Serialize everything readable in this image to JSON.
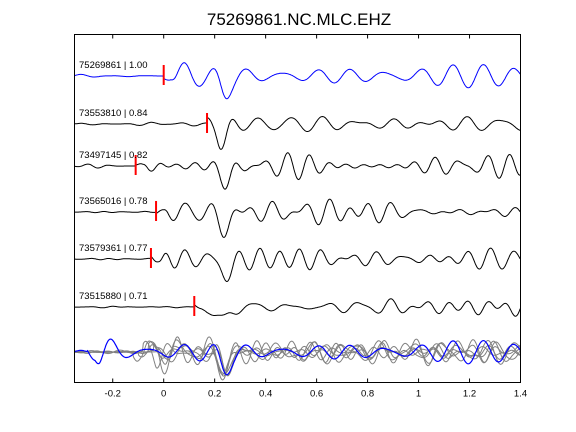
{
  "chart_data": {
    "type": "line",
    "title": "75269861.NC.MLC.EHZ",
    "xlabel": "",
    "ylabel": "",
    "xlim": [
      -0.35,
      1.4
    ],
    "xticks": [
      -0.2,
      0,
      0.2,
      0.4,
      0.6,
      0.8,
      1,
      1.2,
      1.4
    ],
    "xtick_labels": [
      "-0.2",
      "0",
      "0.2",
      "0.4",
      "0.6",
      "0.8",
      "1",
      "1.2",
      "1.4"
    ],
    "colors": {
      "reference": "#0000ff",
      "trace": "#000000",
      "pick": "#ff0000",
      "overlay": "#808080"
    },
    "traces": [
      {
        "label": "75269861 | 1.00",
        "pick_time": 0.0,
        "color": "reference"
      },
      {
        "label": "73553810 | 0.84",
        "pick_time": 0.17,
        "color": "trace"
      },
      {
        "label": "73497145 | 0.82",
        "pick_time": -0.11,
        "color": "trace"
      },
      {
        "label": "73565016 | 0.78",
        "pick_time": -0.03,
        "color": "trace"
      },
      {
        "label": "73579361 | 0.77",
        "pick_time": -0.05,
        "color": "trace"
      },
      {
        "label": "73515880 | 0.71",
        "pick_time": 0.12,
        "color": "trace"
      }
    ],
    "stack": {
      "count": 6,
      "color": "overlay",
      "reference_color": "reference"
    }
  }
}
